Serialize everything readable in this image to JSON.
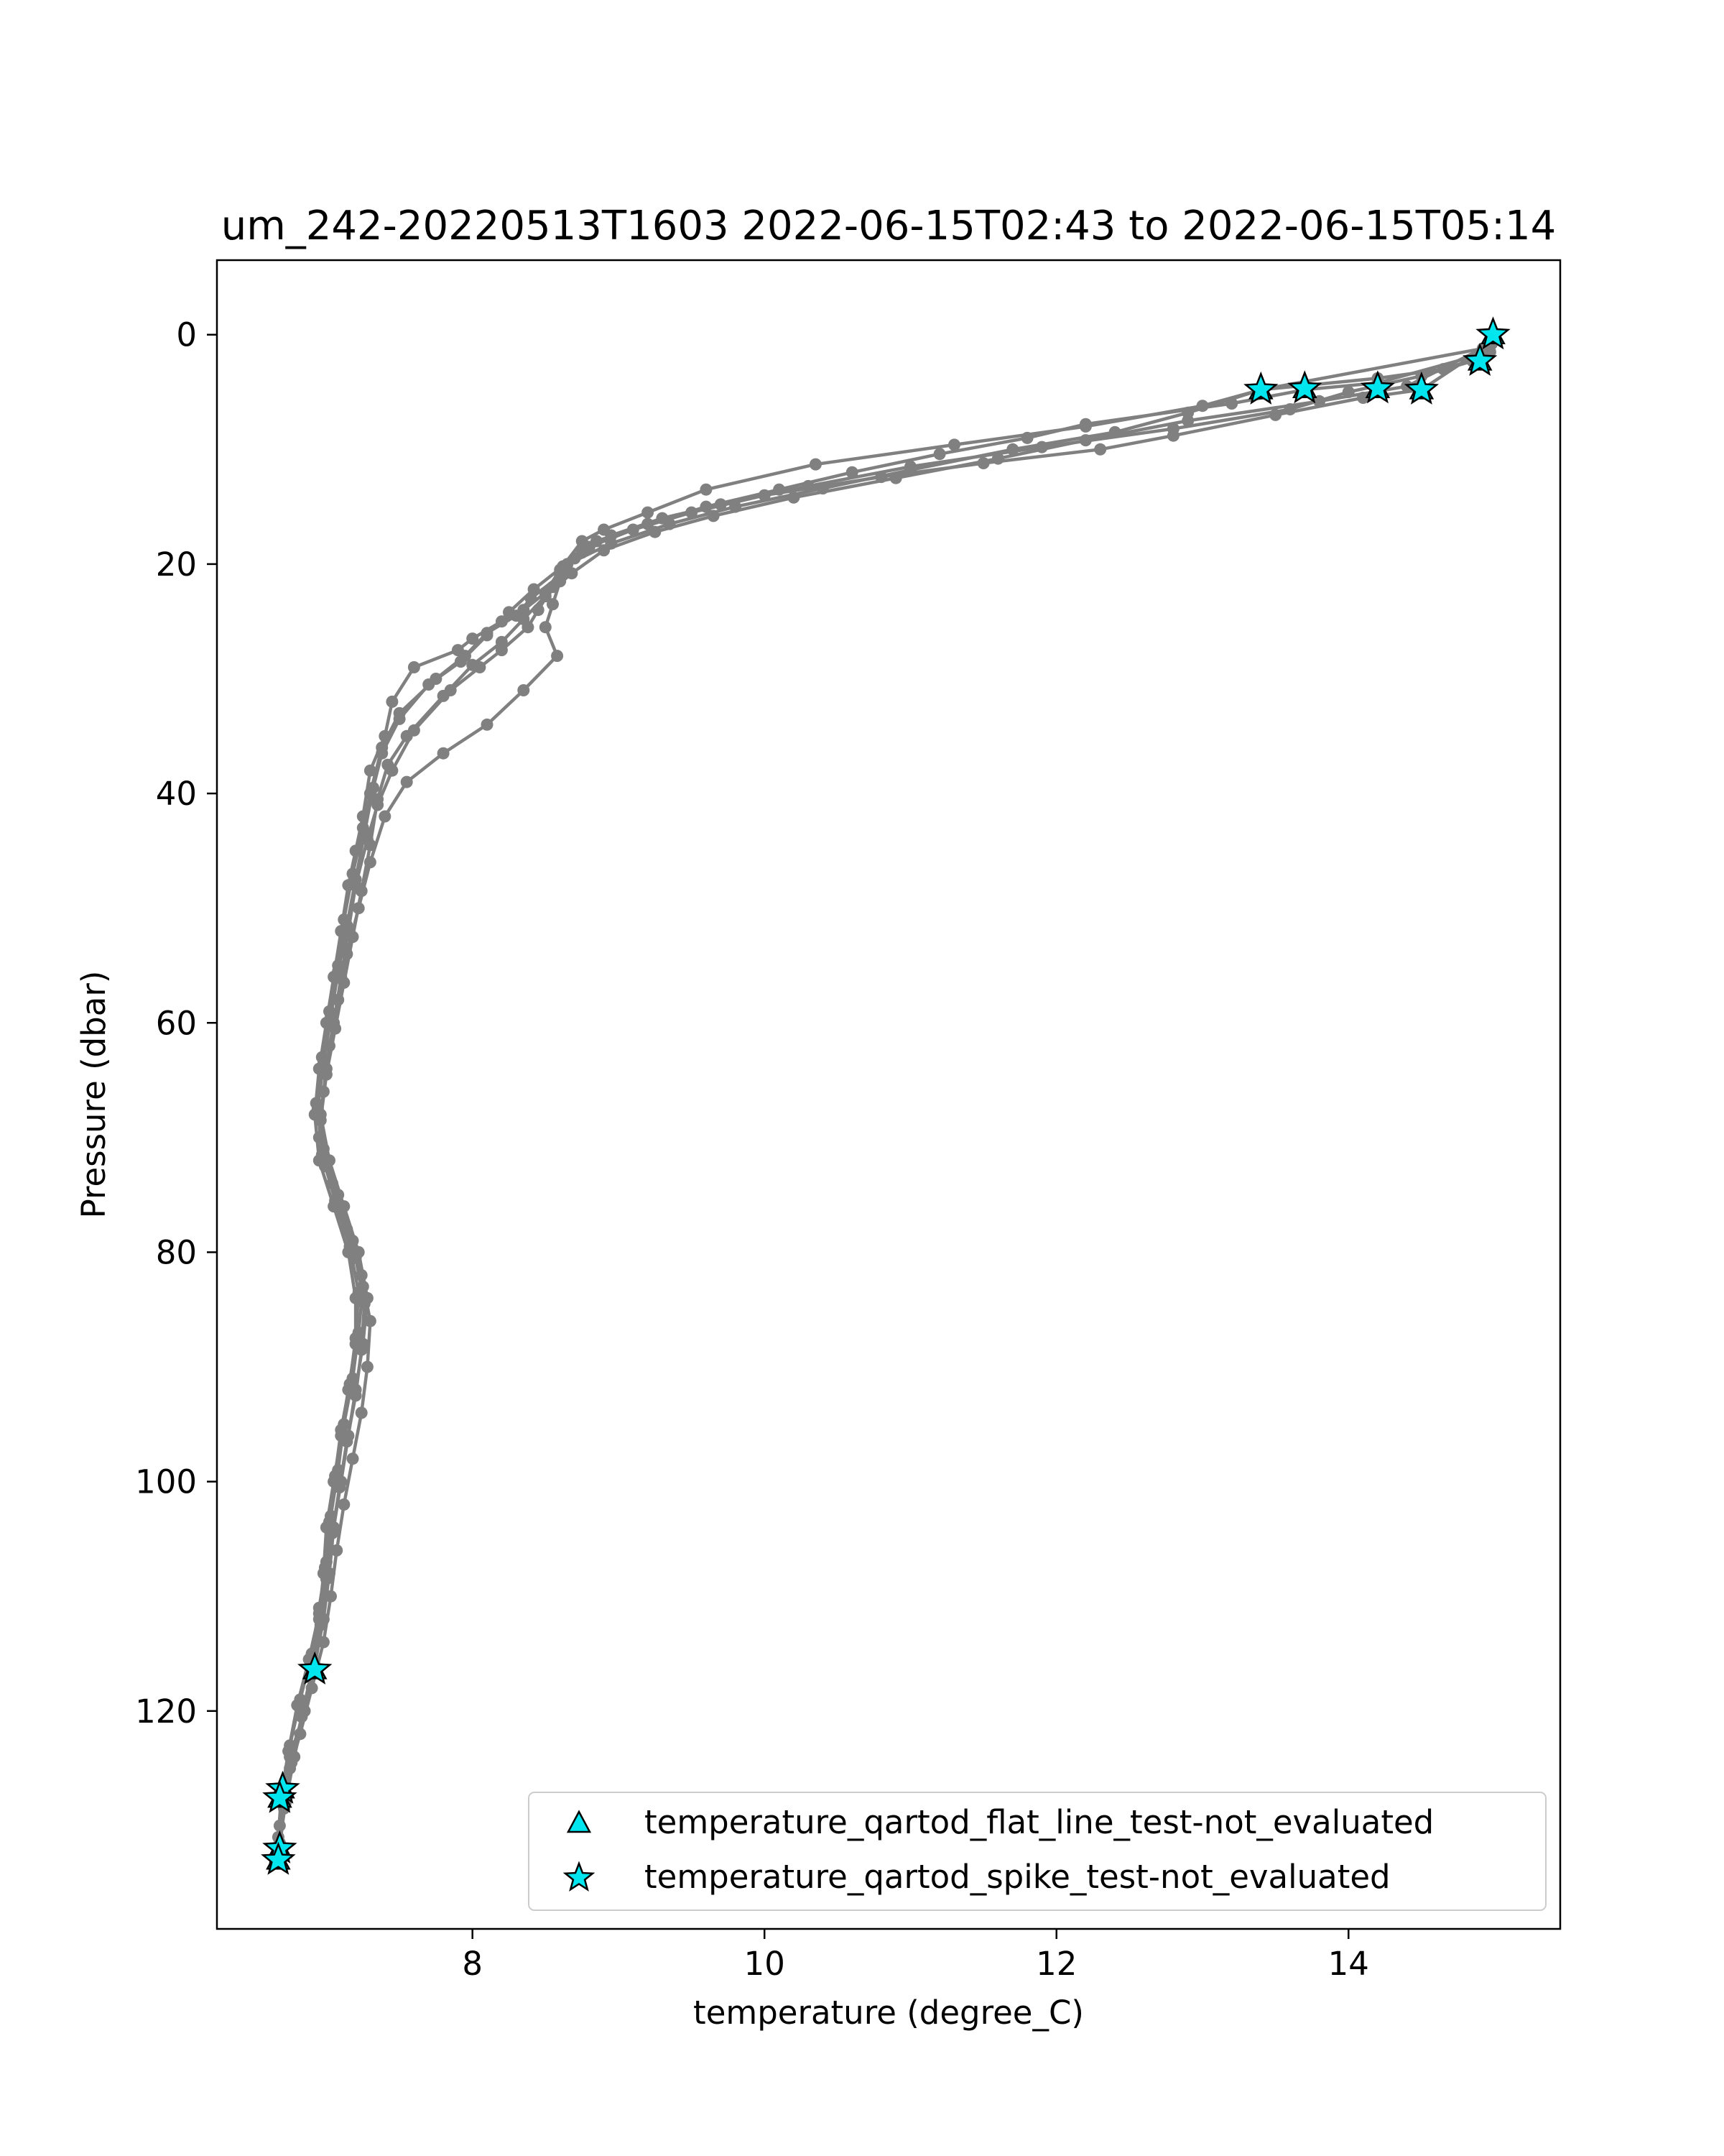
{
  "chart_data": {
    "type": "scatter",
    "title": "um_242-20220513T1603 2022-06-15T02:43 to 2022-06-15T05:14",
    "xlabel": "temperature (degree_C)",
    "ylabel": "Pressure (dbar)",
    "xlim": [
      6.25,
      15.45
    ],
    "ylim": [
      139,
      -6.5
    ],
    "y_inverted": true,
    "xticks": [
      8,
      10,
      12,
      14
    ],
    "yticks": [
      0,
      20,
      40,
      60,
      80,
      100,
      120
    ],
    "grid": false,
    "legend_placement": "lower right",
    "profile_color": "#808080",
    "marker_color": "#00e5ee",
    "series": [
      {
        "line": true,
        "points": [
          [
            14.99,
            0.0
          ],
          [
            14.9,
            2.0
          ],
          [
            14.65,
            3.0
          ],
          [
            14.2,
            3.8
          ],
          [
            13.4,
            4.8
          ],
          [
            13.0,
            6.2
          ],
          [
            12.2,
            8.0
          ],
          [
            11.3,
            9.6
          ],
          [
            10.35,
            11.3
          ],
          [
            9.6,
            13.5
          ],
          [
            9.2,
            15.5
          ],
          [
            8.9,
            17.0
          ],
          [
            8.75,
            18.0
          ],
          [
            8.6,
            20.5
          ],
          [
            8.5,
            22.5
          ],
          [
            8.35,
            24.0
          ],
          [
            8.2,
            25.0
          ],
          [
            8.0,
            26.5
          ],
          [
            7.9,
            27.5
          ],
          [
            7.6,
            29.0
          ],
          [
            7.45,
            32.0
          ],
          [
            7.4,
            35.0
          ],
          [
            7.3,
            38.0
          ],
          [
            7.25,
            42.0
          ],
          [
            7.2,
            45.0
          ],
          [
            7.15,
            48.0
          ],
          [
            7.1,
            52.0
          ],
          [
            7.05,
            56.0
          ],
          [
            7.0,
            60.0
          ],
          [
            6.95,
            64.0
          ],
          [
            6.92,
            68.0
          ],
          [
            6.95,
            72.0
          ],
          [
            7.05,
            76.0
          ],
          [
            7.15,
            80.0
          ],
          [
            7.2,
            84.0
          ],
          [
            7.2,
            88.0
          ],
          [
            7.15,
            92.0
          ],
          [
            7.1,
            96.0
          ],
          [
            7.05,
            100.0
          ],
          [
            7.0,
            104.0
          ],
          [
            6.98,
            108.0
          ],
          [
            6.95,
            112.0
          ],
          [
            6.9,
            116.4
          ],
          [
            6.85,
            120.0
          ],
          [
            6.75,
            124.0
          ],
          [
            6.7,
            127.0
          ]
        ]
      },
      {
        "line": true,
        "points": [
          [
            15.0,
            0.5
          ],
          [
            14.85,
            2.3
          ],
          [
            14.5,
            3.6
          ],
          [
            14.0,
            5.0
          ],
          [
            13.6,
            6.5
          ],
          [
            12.8,
            8.2
          ],
          [
            11.9,
            9.8
          ],
          [
            11.0,
            11.5
          ],
          [
            10.3,
            13.2
          ],
          [
            9.7,
            14.8
          ],
          [
            9.3,
            16.0
          ],
          [
            8.95,
            17.5
          ],
          [
            8.75,
            19.0
          ],
          [
            8.6,
            21.0
          ],
          [
            8.4,
            23.0
          ],
          [
            8.3,
            24.5
          ],
          [
            8.1,
            26.0
          ],
          [
            7.95,
            28.0
          ],
          [
            7.75,
            30.0
          ],
          [
            7.5,
            33.0
          ],
          [
            7.38,
            36.0
          ],
          [
            7.3,
            40.0
          ],
          [
            7.25,
            43.0
          ],
          [
            7.18,
            47.0
          ],
          [
            7.12,
            51.0
          ],
          [
            7.08,
            55.0
          ],
          [
            7.02,
            59.0
          ],
          [
            6.97,
            63.0
          ],
          [
            6.93,
            67.0
          ],
          [
            6.98,
            71.0
          ],
          [
            7.08,
            75.0
          ],
          [
            7.18,
            79.0
          ],
          [
            7.25,
            83.0
          ],
          [
            7.22,
            87.0
          ],
          [
            7.18,
            91.0
          ],
          [
            7.12,
            95.0
          ],
          [
            7.08,
            99.0
          ],
          [
            7.03,
            103.0
          ],
          [
            7.0,
            107.0
          ],
          [
            6.95,
            111.0
          ],
          [
            6.9,
            115.0
          ],
          [
            6.82,
            119.0
          ],
          [
            6.75,
            123.0
          ],
          [
            6.7,
            127.0
          ],
          [
            6.68,
            130.0
          ],
          [
            6.67,
            132.5
          ]
        ]
      },
      {
        "line": true,
        "points": [
          [
            14.95,
            1.0
          ],
          [
            14.5,
            4.8
          ],
          [
            14.1,
            5.5
          ],
          [
            13.5,
            7.0
          ],
          [
            12.8,
            8.8
          ],
          [
            12.3,
            10.0
          ],
          [
            11.5,
            11.2
          ],
          [
            10.8,
            12.4
          ],
          [
            10.0,
            14.0
          ],
          [
            9.5,
            15.5
          ],
          [
            9.1,
            17.0
          ],
          [
            8.8,
            18.5
          ],
          [
            8.65,
            20.0
          ],
          [
            8.55,
            22.0
          ],
          [
            8.45,
            24.0
          ],
          [
            8.38,
            25.5
          ],
          [
            8.2,
            27.5
          ],
          [
            8.05,
            29.0
          ],
          [
            7.85,
            31.0
          ],
          [
            7.6,
            34.5
          ],
          [
            7.45,
            38.0
          ],
          [
            7.35,
            41.0
          ],
          [
            7.28,
            44.0
          ],
          [
            7.2,
            48.0
          ],
          [
            7.15,
            52.0
          ],
          [
            7.1,
            56.0
          ],
          [
            7.05,
            60.0
          ],
          [
            7.0,
            64.0
          ],
          [
            6.96,
            68.0
          ],
          [
            7.02,
            72.0
          ],
          [
            7.12,
            76.0
          ],
          [
            7.22,
            80.0
          ],
          [
            7.28,
            84.0
          ],
          [
            7.25,
            88.0
          ],
          [
            7.2,
            92.0
          ],
          [
            7.15,
            96.0
          ],
          [
            7.1,
            100.0
          ],
          [
            7.05,
            104.0
          ],
          [
            7.02,
            108.0
          ],
          [
            6.98,
            112.0
          ],
          [
            6.92,
            116.0
          ],
          [
            6.85,
            120.0
          ],
          [
            6.78,
            124.0
          ],
          [
            6.72,
            128.0
          ],
          [
            6.68,
            131.5
          ],
          [
            6.67,
            133.0
          ]
        ]
      },
      {
        "line": true,
        "points": [
          [
            14.97,
            1.5
          ],
          [
            14.2,
            4.2
          ],
          [
            13.7,
            4.8
          ],
          [
            13.2,
            6.0
          ],
          [
            12.2,
            7.8
          ],
          [
            11.8,
            9.0
          ],
          [
            11.2,
            10.4
          ],
          [
            10.6,
            12.0
          ],
          [
            10.1,
            13.5
          ],
          [
            9.6,
            15.0
          ],
          [
            9.2,
            16.5
          ],
          [
            8.85,
            18.0
          ],
          [
            8.7,
            19.5
          ],
          [
            8.6,
            21.5
          ],
          [
            8.55,
            23.5
          ],
          [
            8.5,
            25.5
          ],
          [
            8.58,
            28.0
          ],
          [
            8.35,
            31.0
          ],
          [
            8.1,
            34.0
          ],
          [
            7.8,
            36.5
          ],
          [
            7.55,
            39.0
          ],
          [
            7.4,
            42.0
          ],
          [
            7.3,
            46.0
          ],
          [
            7.22,
            50.0
          ],
          [
            7.14,
            54.0
          ],
          [
            7.08,
            58.0
          ],
          [
            7.02,
            62.0
          ],
          [
            6.98,
            66.0
          ],
          [
            6.95,
            70.0
          ],
          [
            7.04,
            74.0
          ],
          [
            7.14,
            78.0
          ],
          [
            7.24,
            82.0
          ],
          [
            7.3,
            86.0
          ],
          [
            7.28,
            90.0
          ],
          [
            7.24,
            94.0
          ],
          [
            7.18,
            98.0
          ],
          [
            7.12,
            102.0
          ],
          [
            7.07,
            106.0
          ],
          [
            7.03,
            110.0
          ],
          [
            6.98,
            114.0
          ],
          [
            6.9,
            118.0
          ],
          [
            6.82,
            122.0
          ],
          [
            6.75,
            125.0
          ],
          [
            6.7,
            128.0
          ]
        ]
      },
      {
        "line": true,
        "points": [
          [
            14.98,
            0.8
          ],
          [
            14.4,
            4.5
          ],
          [
            13.8,
            5.8
          ],
          [
            12.9,
            7.5
          ],
          [
            12.2,
            9.2
          ],
          [
            11.6,
            10.8
          ],
          [
            10.9,
            12.5
          ],
          [
            10.2,
            14.2
          ],
          [
            9.65,
            15.8
          ],
          [
            9.25,
            17.2
          ],
          [
            8.9,
            18.8
          ],
          [
            8.68,
            20.8
          ],
          [
            8.5,
            22.8
          ],
          [
            8.35,
            24.8
          ],
          [
            8.2,
            26.8
          ],
          [
            8.0,
            28.8
          ],
          [
            7.8,
            31.5
          ],
          [
            7.55,
            35.0
          ],
          [
            7.42,
            37.5
          ],
          [
            7.35,
            40.5
          ],
          [
            7.3,
            44.5
          ],
          [
            7.24,
            48.5
          ],
          [
            7.18,
            52.5
          ],
          [
            7.12,
            56.5
          ],
          [
            7.06,
            60.5
          ],
          [
            7.0,
            64.5
          ],
          [
            6.96,
            68.5
          ],
          [
            6.99,
            72.5
          ],
          [
            7.1,
            76.5
          ],
          [
            7.2,
            80.5
          ],
          [
            7.26,
            84.5
          ],
          [
            7.24,
            88.5
          ],
          [
            7.2,
            92.5
          ],
          [
            7.14,
            96.5
          ],
          [
            7.09,
            100.5
          ],
          [
            7.04,
            104.5
          ],
          [
            7.0,
            108.5
          ],
          [
            6.96,
            112.5
          ],
          [
            6.9,
            116.5
          ],
          [
            6.83,
            120.5
          ],
          [
            6.76,
            124.5
          ],
          [
            6.71,
            128.5
          ],
          [
            6.68,
            132.0
          ]
        ]
      },
      {
        "line": true,
        "points": [
          [
            14.92,
            1.2
          ],
          [
            13.4,
            4.8
          ],
          [
            12.9,
            6.8
          ],
          [
            12.4,
            8.5
          ],
          [
            11.7,
            10.0
          ],
          [
            11.0,
            11.8
          ],
          [
            10.4,
            13.4
          ],
          [
            9.8,
            15.0
          ],
          [
            9.35,
            16.5
          ],
          [
            8.95,
            18.2
          ],
          [
            8.62,
            20.2
          ],
          [
            8.42,
            22.2
          ],
          [
            8.25,
            24.2
          ],
          [
            8.1,
            26.2
          ],
          [
            7.92,
            28.5
          ],
          [
            7.7,
            30.5
          ],
          [
            7.5,
            33.5
          ],
          [
            7.38,
            36.5
          ],
          [
            7.32,
            39.5
          ],
          [
            7.26,
            43.5
          ],
          [
            7.2,
            47.5
          ],
          [
            7.14,
            51.5
          ],
          [
            7.08,
            55.5
          ],
          [
            7.03,
            59.5
          ],
          [
            6.98,
            63.5
          ],
          [
            6.94,
            67.5
          ],
          [
            6.97,
            71.5
          ],
          [
            7.06,
            75.5
          ],
          [
            7.16,
            79.5
          ],
          [
            7.22,
            83.5
          ],
          [
            7.2,
            87.5
          ],
          [
            7.16,
            91.5
          ],
          [
            7.1,
            95.5
          ],
          [
            7.06,
            99.5
          ],
          [
            7.02,
            103.5
          ],
          [
            6.99,
            107.5
          ],
          [
            6.95,
            111.5
          ],
          [
            6.88,
            115.5
          ],
          [
            6.8,
            119.5
          ],
          [
            6.74,
            123.5
          ],
          [
            6.69,
            127.5
          ],
          [
            6.67,
            131.0
          ]
        ]
      }
    ],
    "flat_line_markers": [
      [
        14.99,
        0.0
      ],
      [
        14.9,
        2.3
      ],
      [
        13.4,
        4.8
      ],
      [
        13.7,
        4.7
      ],
      [
        14.2,
        4.7
      ],
      [
        14.5,
        4.8
      ],
      [
        6.92,
        116.4
      ],
      [
        6.7,
        126.8
      ],
      [
        6.68,
        127.6
      ],
      [
        6.68,
        132.0
      ],
      [
        6.67,
        133.0
      ]
    ],
    "spike_markers": [
      [
        14.99,
        0.0
      ],
      [
        14.9,
        2.3
      ],
      [
        13.4,
        4.8
      ],
      [
        13.7,
        4.7
      ],
      [
        14.2,
        4.7
      ],
      [
        14.5,
        4.8
      ],
      [
        6.92,
        116.4
      ],
      [
        6.7,
        126.8
      ],
      [
        6.68,
        127.6
      ],
      [
        6.68,
        132.0
      ],
      [
        6.67,
        133.0
      ]
    ],
    "legend": [
      {
        "marker": "triangle",
        "label": "temperature_qartod_flat_line_test-not_evaluated"
      },
      {
        "marker": "star",
        "label": "temperature_qartod_spike_test-not_evaluated"
      }
    ]
  }
}
